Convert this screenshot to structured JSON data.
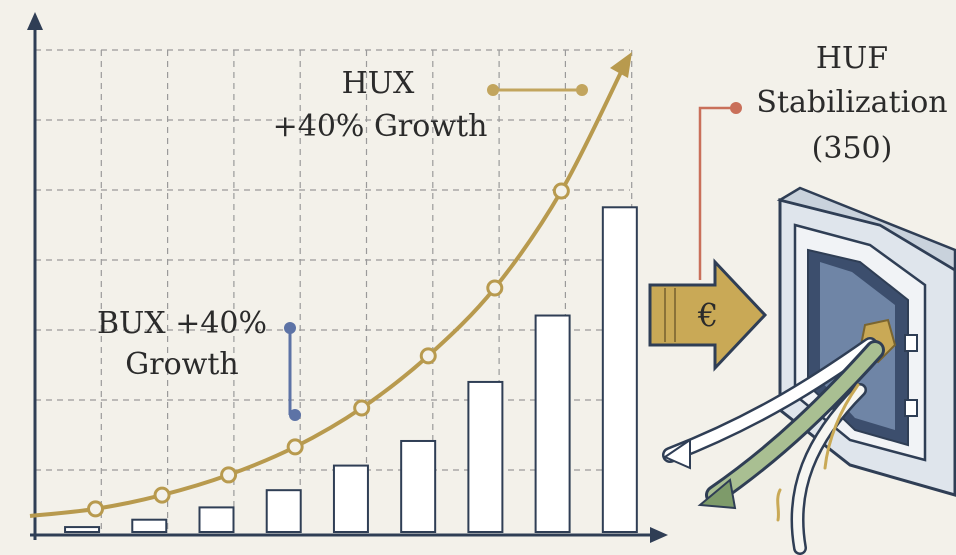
{
  "chart_data": {
    "type": "bar",
    "ylim": [
      0,
      100
    ],
    "xlim": [
      0,
      100
    ],
    "bars": {
      "color": "#ffffff",
      "values": [
        1,
        2.5,
        5,
        8.5,
        13.5,
        18.5,
        30.5,
        44,
        66
      ]
    },
    "line": {
      "color": "#b89a4e",
      "x": [
        10,
        21,
        32,
        43,
        54,
        65,
        76,
        87
      ],
      "values": [
        4.7,
        7.5,
        11.6,
        17.3,
        25.2,
        35.8,
        49.6,
        69.3
      ]
    },
    "annotations": {
      "hux": [
        "HUX",
        "+40% Growth"
      ],
      "bux": [
        "BUX +40%",
        "Growth"
      ],
      "huf": [
        "HUF",
        "Stabilization",
        "(350)"
      ],
      "currency": "€"
    }
  }
}
